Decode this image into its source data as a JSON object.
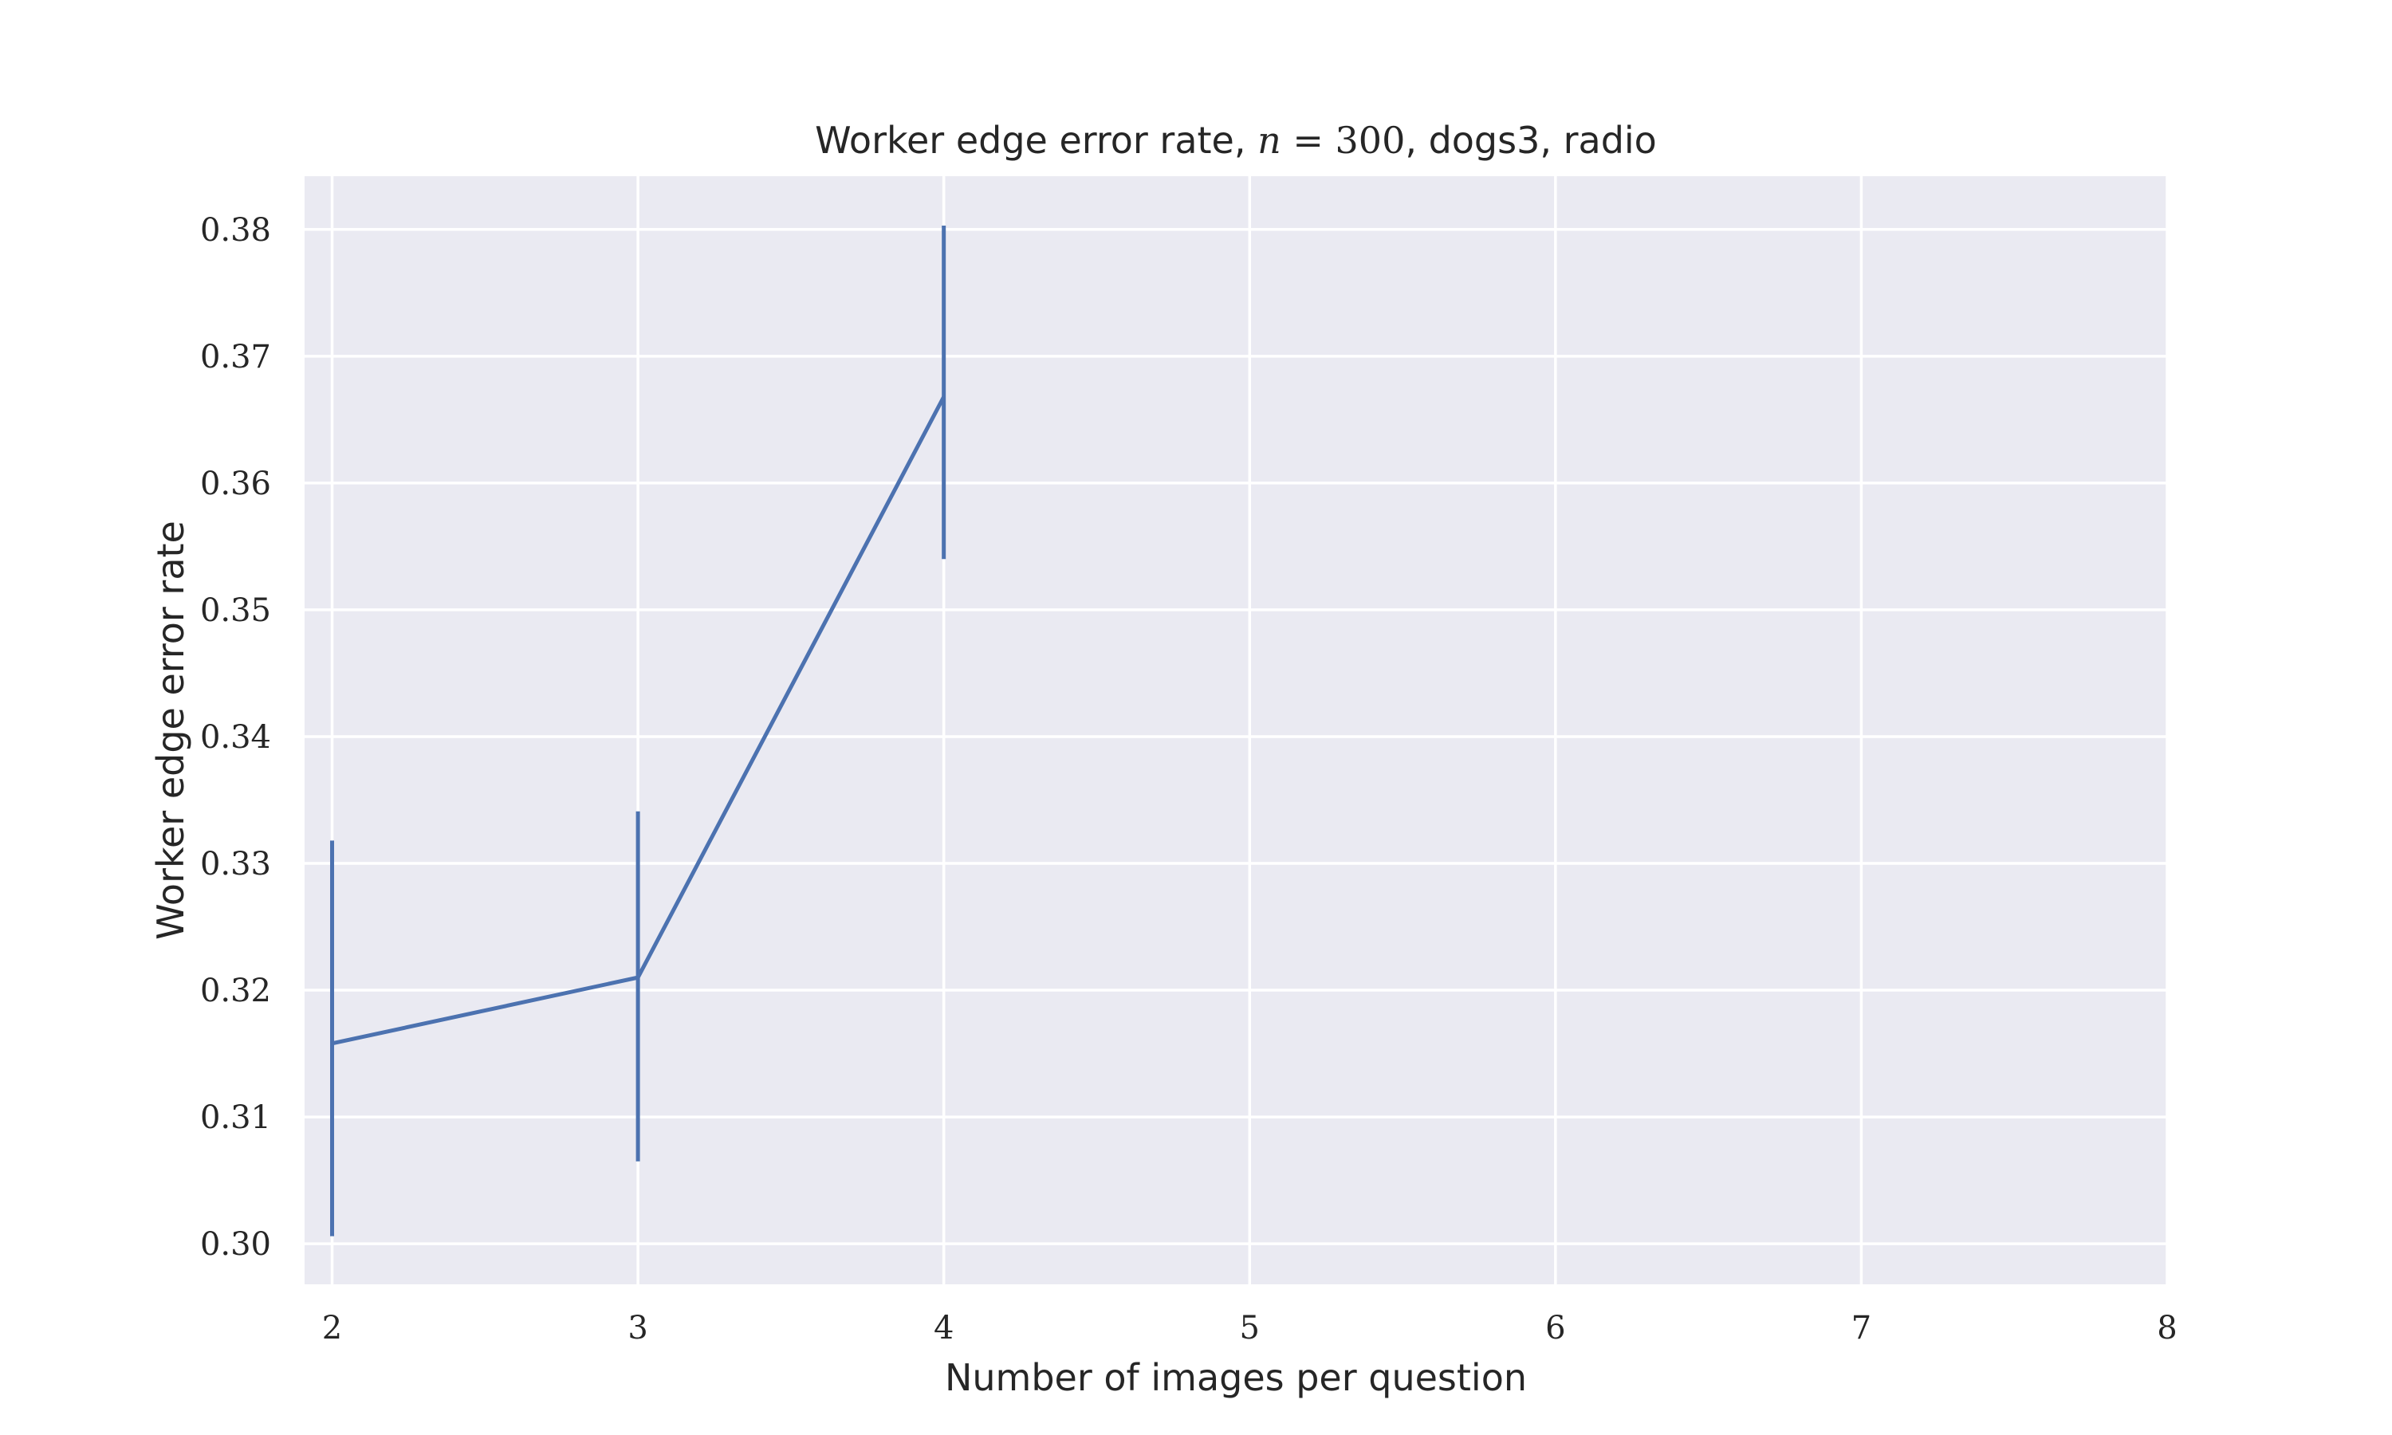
{
  "chart_data": {
    "type": "line",
    "title": {
      "prefix": "Worker edge error rate, ",
      "math_var": "n",
      "math_rest": " = 300",
      "suffix": ", dogs3, radio"
    },
    "xlabel": "Number of images per question",
    "ylabel": "Worker edge error rate",
    "xlim": [
      1.91,
      8
    ],
    "ylim": [
      0.2968,
      0.3842
    ],
    "xticks": [
      2,
      3,
      4,
      5,
      6,
      7,
      8
    ],
    "yticks": [
      0.3,
      0.31,
      0.32,
      0.33,
      0.34,
      0.35,
      0.36,
      0.37,
      0.38
    ],
    "grid": true,
    "legend": "none",
    "colors": {
      "series": "#4C72B0",
      "background": "#EAEAF2",
      "grid": "#FFFFFF"
    },
    "series": [
      {
        "x": [
          2,
          3,
          4
        ],
        "y": [
          0.3158,
          0.321,
          0.3668
        ],
        "err_low": [
          0.3006,
          0.3065,
          0.354
        ],
        "err_high": [
          0.3318,
          0.3341,
          0.3803
        ]
      }
    ]
  }
}
